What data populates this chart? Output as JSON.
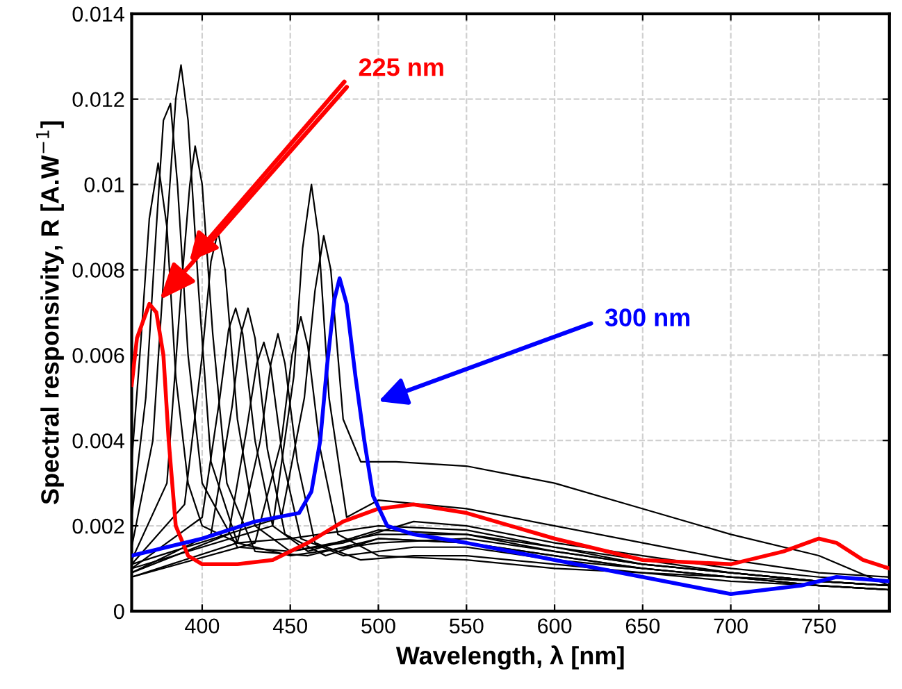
{
  "chart_data": {
    "type": "line",
    "xlabel": "Wavelength, λ [nm]",
    "ylabel": "Spectral responsivity, R [A.W$^{−1}$]",
    "xlim": [
      360,
      790
    ],
    "xticks": [
      400,
      450,
      500,
      550,
      600,
      650,
      700,
      750
    ],
    "ylim": [
      0,
      0.014
    ],
    "yticks": [
      0,
      0.002,
      0.004,
      0.006,
      0.008,
      {
        "value": 0.01,
        "label": "0.01"
      },
      0.012,
      0.014
    ],
    "grid": true,
    "legend": false,
    "marker": "none",
    "line_style": "solid",
    "annotations": [
      {
        "text": "225 nm",
        "x": 376,
        "y": 0.0073
      },
      "300 nm"
    ],
    "series": [
      {
        "color": "#000000",
        "x": [
          360,
          365,
          370,
          375,
          380,
          385,
          392,
          400,
          420,
          450,
          500,
          550,
          600,
          650,
          700,
          750,
          790
        ],
        "values": [
          0.0035,
          0.0062,
          0.0092,
          0.0105,
          0.009,
          0.0055,
          0.003,
          0.002,
          0.0016,
          0.0017,
          0.002,
          0.0019,
          0.0015,
          0.0012,
          0.0009,
          0.0007,
          0.0006
        ]
      },
      {
        "color": "#000000",
        "x": [
          360,
          368,
          374,
          378,
          382,
          386,
          392,
          400,
          420,
          450,
          500,
          550,
          600,
          650,
          700,
          750,
          790
        ],
        "values": [
          0.0022,
          0.005,
          0.009,
          0.0115,
          0.0119,
          0.01,
          0.006,
          0.003,
          0.0015,
          0.0014,
          0.0018,
          0.0018,
          0.0015,
          0.0011,
          0.0009,
          0.0007,
          0.0006
        ]
      },
      {
        "color": "#000000",
        "x": [
          360,
          372,
          380,
          385,
          388,
          392,
          398,
          405,
          420,
          450,
          500,
          550,
          600,
          650,
          700,
          750,
          790
        ],
        "values": [
          0.0015,
          0.004,
          0.009,
          0.012,
          0.0128,
          0.0115,
          0.0075,
          0.0035,
          0.0016,
          0.0013,
          0.0016,
          0.0017,
          0.0014,
          0.0011,
          0.0009,
          0.0007,
          0.0006
        ]
      },
      {
        "color": "#000000",
        "x": [
          360,
          380,
          388,
          393,
          396,
          400,
          406,
          414,
          430,
          460,
          500,
          550,
          600,
          650,
          700,
          750,
          790
        ],
        "values": [
          0.0012,
          0.003,
          0.0075,
          0.01,
          0.0109,
          0.01,
          0.0065,
          0.003,
          0.0014,
          0.0013,
          0.0017,
          0.0016,
          0.0013,
          0.001,
          0.0008,
          0.0006,
          0.0005
        ]
      },
      {
        "color": "#000000",
        "x": [
          360,
          390,
          400,
          405,
          409,
          413,
          420,
          430,
          450,
          480,
          520,
          550,
          600,
          650,
          700,
          750,
          790
        ],
        "values": [
          0.0011,
          0.0025,
          0.006,
          0.0082,
          0.0089,
          0.008,
          0.0045,
          0.002,
          0.0014,
          0.0016,
          0.0021,
          0.002,
          0.0016,
          0.0013,
          0.001,
          0.0008,
          0.0007
        ]
      },
      {
        "color": "#000000",
        "x": [
          360,
          400,
          410,
          415,
          419,
          423,
          430,
          440,
          460,
          500,
          550,
          600,
          650,
          700,
          750,
          790
        ],
        "values": [
          0.001,
          0.0022,
          0.005,
          0.0066,
          0.0071,
          0.0065,
          0.004,
          0.002,
          0.0014,
          0.0019,
          0.0018,
          0.0014,
          0.0011,
          0.0009,
          0.0007,
          0.0006
        ]
      },
      {
        "color": "#000000",
        "x": [
          360,
          405,
          417,
          422,
          426,
          430,
          437,
          447,
          470,
          500,
          550,
          600,
          650,
          700,
          750,
          790
        ],
        "values": [
          0.0009,
          0.0018,
          0.0048,
          0.0065,
          0.0071,
          0.0064,
          0.0038,
          0.0018,
          0.0013,
          0.0017,
          0.0016,
          0.0013,
          0.001,
          0.0008,
          0.0007,
          0.0006
        ]
      },
      {
        "color": "#000000",
        "x": [
          360,
          415,
          425,
          431,
          435,
          439,
          446,
          456,
          480,
          520,
          550,
          600,
          650,
          700,
          750,
          790
        ],
        "values": [
          0.0009,
          0.0018,
          0.0042,
          0.0058,
          0.0063,
          0.0057,
          0.0035,
          0.0017,
          0.0013,
          0.0015,
          0.0015,
          0.0012,
          0.001,
          0.0008,
          0.0006,
          0.0005
        ]
      },
      {
        "color": "#000000",
        "x": [
          360,
          420,
          433,
          439,
          443,
          447,
          454,
          464,
          490,
          520,
          550,
          600,
          650,
          700,
          750,
          790
        ],
        "values": [
          0.0008,
          0.0016,
          0.004,
          0.0058,
          0.0065,
          0.0058,
          0.0035,
          0.0016,
          0.0012,
          0.0013,
          0.0013,
          0.0011,
          0.0009,
          0.0007,
          0.0006,
          0.0005
        ]
      },
      {
        "color": "#000000",
        "x": [
          360,
          430,
          445,
          451,
          456,
          460,
          467,
          477,
          500,
          550,
          600,
          650,
          700,
          750,
          790
        ],
        "values": [
          0.0008,
          0.0016,
          0.004,
          0.006,
          0.0069,
          0.0062,
          0.0038,
          0.0018,
          0.0013,
          0.0012,
          0.001,
          0.0009,
          0.0008,
          0.0006,
          0.0005
        ]
      },
      {
        "color": "#000000",
        "x": [
          360,
          440,
          452,
          457,
          462,
          466,
          472,
          482,
          500,
          550,
          600,
          650,
          700,
          750,
          790
        ],
        "values": [
          0.001,
          0.002,
          0.0055,
          0.0085,
          0.01,
          0.0088,
          0.005,
          0.0022,
          0.0026,
          0.0024,
          0.002,
          0.0016,
          0.0012,
          0.0009,
          0.0008
        ]
      },
      {
        "color": "#000000",
        "x": [
          360,
          445,
          458,
          464,
          469,
          473,
          480,
          490,
          510,
          550,
          600,
          650,
          700,
          750,
          790
        ],
        "values": [
          0.0011,
          0.0022,
          0.005,
          0.0075,
          0.0088,
          0.008,
          0.0045,
          0.0035,
          0.0035,
          0.0034,
          0.003,
          0.0024,
          0.0018,
          0.0013,
          0.0006
        ]
      },
      {
        "color": "#ff0000",
        "x": [
          360,
          363,
          370,
          374,
          378,
          381,
          385,
          392,
          400,
          420,
          440,
          460,
          480,
          500,
          520,
          550,
          600,
          650,
          700,
          730,
          750,
          760,
          775,
          790
        ],
        "values": [
          0.0053,
          0.0064,
          0.0072,
          0.007,
          0.006,
          0.004,
          0.002,
          0.0013,
          0.0011,
          0.0011,
          0.0012,
          0.0016,
          0.0021,
          0.0024,
          0.0025,
          0.0023,
          0.0017,
          0.0012,
          0.0011,
          0.0014,
          0.0017,
          0.0016,
          0.0012,
          0.001
        ]
      },
      {
        "color": "#0000ff",
        "x": [
          360,
          380,
          400,
          430,
          455,
          462,
          467,
          471,
          475,
          478,
          482,
          487,
          492,
          497,
          505,
          520,
          550,
          600,
          650,
          700,
          740,
          760,
          790
        ],
        "values": [
          0.0013,
          0.0015,
          0.0017,
          0.0021,
          0.0023,
          0.0028,
          0.004,
          0.0058,
          0.0073,
          0.0078,
          0.0072,
          0.0055,
          0.004,
          0.0027,
          0.002,
          0.0018,
          0.0016,
          0.0012,
          0.0008,
          0.0004,
          0.0006,
          0.0008,
          0.0007
        ]
      }
    ]
  }
}
